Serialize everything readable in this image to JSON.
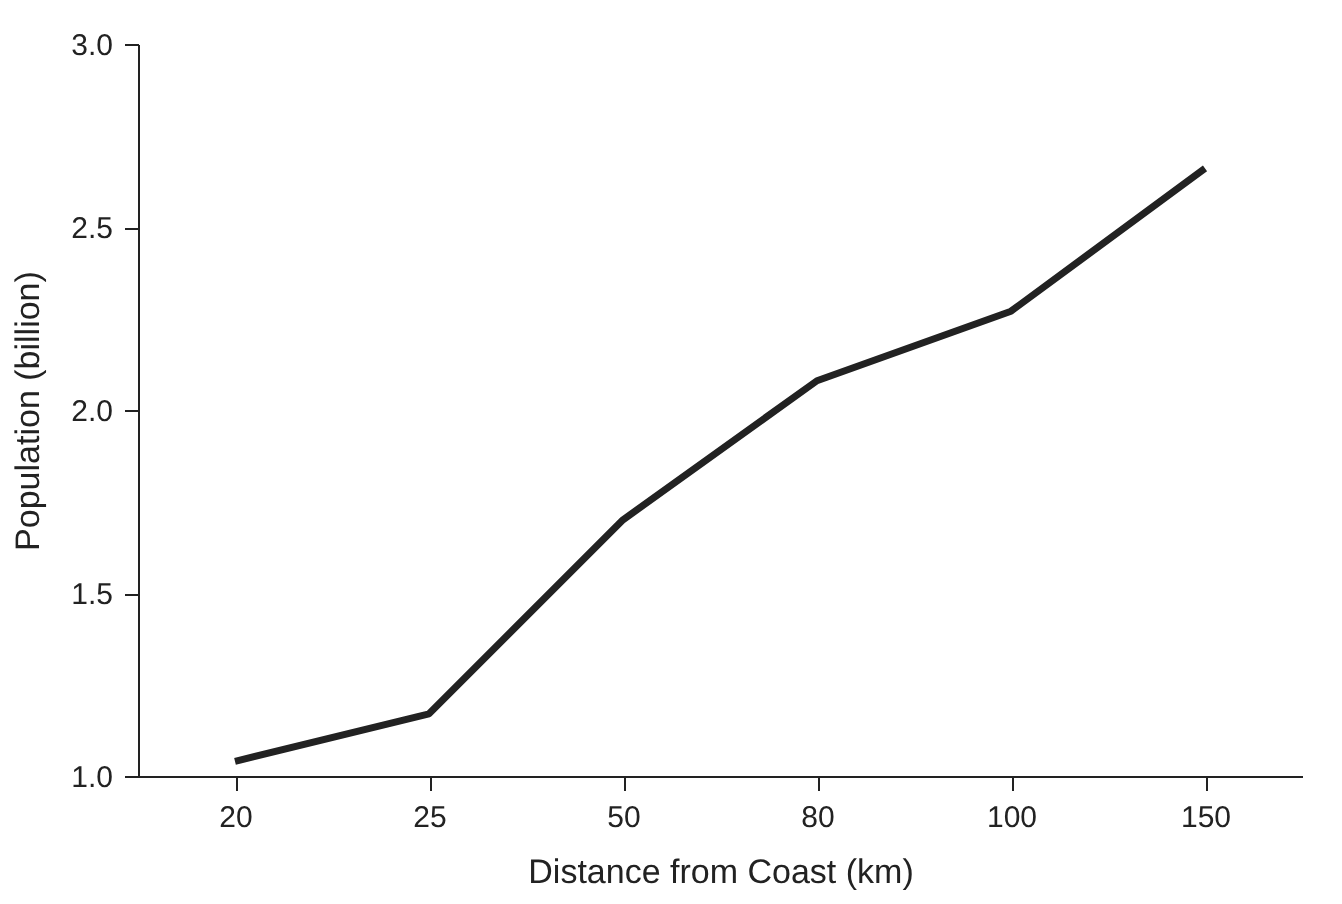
{
  "chart_data": {
    "type": "line",
    "xlabel": "Distance from Coast (km)",
    "ylabel": "Population (billion)",
    "categories": [
      "20",
      "25",
      "50",
      "80",
      "100",
      "150"
    ],
    "series": [
      {
        "color": "#222222",
        "values": [
          1.04,
          1.17,
          1.7,
          2.08,
          2.27,
          2.66
        ]
      }
    ],
    "ylim": [
      1.0,
      3.0
    ],
    "yticks": [
      {
        "value": 1.0,
        "label": "1.0"
      },
      {
        "value": 1.5,
        "label": "1.5"
      },
      {
        "value": 2.0,
        "label": "2.0"
      },
      {
        "value": 2.5,
        "label": "2.5"
      },
      {
        "value": 3.0,
        "label": "3.0"
      }
    ],
    "grid": false,
    "marker": "none",
    "line_style": "solid"
  }
}
